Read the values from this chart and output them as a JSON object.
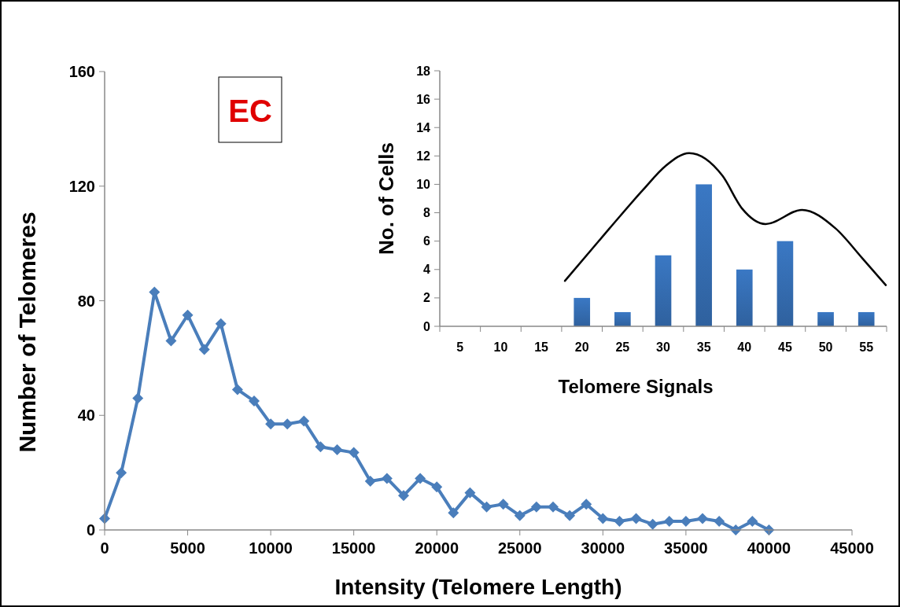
{
  "chart_data": [
    {
      "type": "line",
      "xlabel": "Intensity (Telomere Length)",
      "ylabel": "Number of Telomeres",
      "annotations": [
        "EC"
      ],
      "marker": "diamond",
      "line_style": "solid",
      "grid": false,
      "xlim": [
        0,
        45000
      ],
      "xticks": [
        0,
        5000,
        10000,
        15000,
        20000,
        25000,
        30000,
        35000,
        40000,
        45000
      ],
      "ylim": [
        0,
        160
      ],
      "yticks": [
        0,
        40,
        80,
        120,
        160
      ],
      "series": [
        {
          "color": "#4a7ebb",
          "x": [
            0,
            1000,
            2000,
            3000,
            4000,
            5000,
            6000,
            7000,
            8000,
            9000,
            10000,
            11000,
            12000,
            13000,
            14000,
            15000,
            16000,
            17000,
            18000,
            19000,
            20000,
            21000,
            22000,
            23000,
            24000,
            25000,
            26000,
            27000,
            28000,
            29000,
            30000,
            31000,
            32000,
            33000,
            34000,
            35000,
            36000,
            37000,
            38000,
            39000,
            40000
          ],
          "values": [
            4,
            20,
            46,
            83,
            66,
            75,
            63,
            72,
            49,
            45,
            37,
            37,
            38,
            29,
            28,
            27,
            17,
            18,
            12,
            18,
            15,
            6,
            13,
            8,
            9,
            5,
            8,
            8,
            5,
            9,
            4,
            3,
            4,
            2,
            3,
            3,
            4,
            3,
            0,
            3,
            0
          ]
        }
      ]
    },
    {
      "type": "bar",
      "xlabel": "Telomere Signals",
      "ylabel": "No. of Cells",
      "grid": false,
      "xlim": [
        2.5,
        57.5
      ],
      "xticks": [
        5,
        10,
        15,
        20,
        25,
        30,
        35,
        40,
        45,
        50,
        55
      ],
      "ylim": [
        0,
        18
      ],
      "yticks": [
        0,
        2,
        4,
        6,
        8,
        10,
        12,
        14,
        16,
        18
      ],
      "series": [
        {
          "color": "#3a78c4",
          "x": [
            5,
            10,
            15,
            20,
            25,
            30,
            35,
            40,
            45,
            50,
            55
          ],
          "values": [
            0,
            0,
            0,
            2,
            1,
            5,
            10,
            4,
            6,
            1,
            1
          ]
        },
        {
          "type": "line",
          "color": "#000000",
          "marker": "none",
          "x": [
            17.9,
            23.4,
            27.5,
            30.3,
            33.2,
            37.3,
            39.7,
            42.6,
            47.1,
            51.2,
            54.5,
            57.4
          ],
          "values": [
            3.2,
            6.9,
            9.6,
            11.3,
            12.2,
            10.6,
            8.3,
            7.2,
            8.2,
            6.9,
            4.8,
            2.9
          ]
        }
      ]
    }
  ]
}
